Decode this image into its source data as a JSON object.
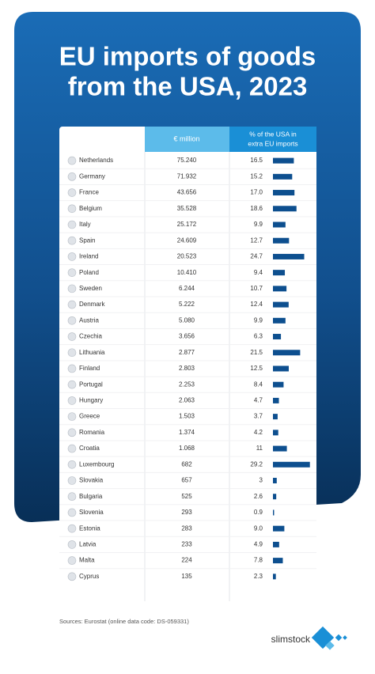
{
  "header": {
    "title": [
      "EU imports of goods",
      "from the USA, 2023"
    ]
  },
  "table": {
    "columns": [
      "€ million",
      "% of the USA in",
      "extra EU imports"
    ],
    "rows": [
      [
        "Netherlands",
        "75.240",
        16.5
      ],
      [
        "Germany",
        "71.932",
        15.2
      ],
      [
        "France",
        "43.656",
        {
          "value": 17,
          "label": "17.0"
        }
      ],
      [
        "Belgium",
        "35.528",
        18.6
      ],
      [
        "Italy",
        "25.172",
        9.9
      ],
      [
        "Spain",
        "24.609",
        12.7
      ],
      [
        "Ireland",
        "20.523",
        24.7
      ],
      [
        "Poland",
        "10.410",
        9.4
      ],
      [
        "Sweden",
        "6.244",
        10.7
      ],
      [
        "Denmark",
        "5.222",
        12.4
      ],
      [
        "Austria",
        "5.080",
        9.9
      ],
      [
        "Czechia",
        "3.656",
        6.3
      ],
      [
        "Lithuania",
        "2.877",
        21.5
      ],
      [
        "Finland",
        "2.803",
        12.5
      ],
      [
        "Portugal",
        "2.253",
        8.4
      ],
      [
        "Hungary",
        "2.063",
        4.7
      ],
      [
        "Greece",
        "1.503",
        3.7
      ],
      [
        "Romania",
        "1.374",
        4.2
      ],
      [
        "Croatia",
        "1.068",
        11.0
      ],
      [
        "Luxembourg",
        "682",
        29.2
      ],
      [
        "Slovakia",
        "657",
        3.0
      ],
      [
        "Bulgaria",
        "525",
        2.6
      ],
      [
        "Slovenia",
        "293",
        0.9
      ],
      [
        "Estonia",
        "283",
        {
          "value": 9,
          "label": "9.0"
        }
      ],
      [
        "Latvia",
        "233",
        4.9
      ],
      [
        "Malta",
        "224",
        7.8
      ],
      [
        "Cyprus",
        "135",
        2.3
      ]
    ]
  },
  "footer": {
    "source": "Sources: Eurostat (online data code: DS-059331)",
    "logo": "slimstock"
  }
}
